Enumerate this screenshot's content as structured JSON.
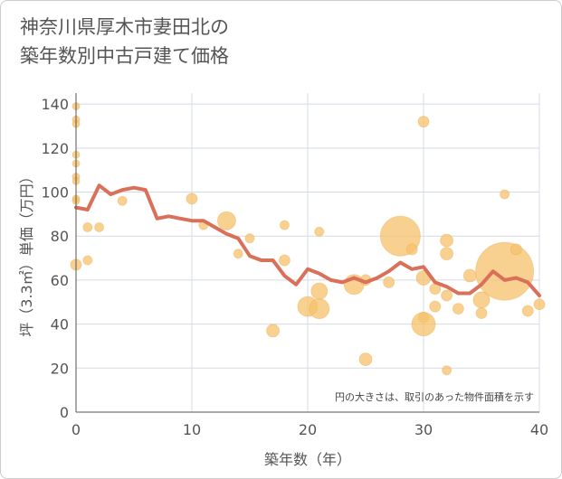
{
  "title_line1": "神奈川県厚木市妻田北の",
  "title_line2": "築年数別中古戸建て価格",
  "chart_data": {
    "type": "scatter",
    "title": "神奈川県厚木市妻田北の築年数別中古戸建て価格",
    "xlabel": "築年数（年）",
    "ylabel": "坪（3.3㎡）単価（万円）",
    "xlim": [
      0,
      40
    ],
    "ylim": [
      0,
      145
    ],
    "xticks": [
      "0",
      "10",
      "20",
      "30",
      "40"
    ],
    "yticks": [
      "0",
      "20",
      "40",
      "60",
      "80",
      "100",
      "120",
      "140"
    ],
    "annotation": "円の大きさは、取引のあった物件面積を示す",
    "colors": {
      "bubble": "#f5c16c",
      "line": "#d9705a",
      "grid": "#d5dbe3",
      "axis": "#555555"
    },
    "series": [
      {
        "name": "average",
        "type": "line",
        "x": [
          0,
          1,
          2,
          3,
          4,
          5,
          6,
          7,
          8,
          9,
          10,
          11,
          12,
          13,
          14,
          15,
          16,
          17,
          18,
          19,
          20,
          21,
          22,
          23,
          24,
          25,
          26,
          27,
          28,
          29,
          30,
          31,
          32,
          33,
          34,
          35,
          36,
          37,
          38,
          39,
          40
        ],
        "y": [
          93,
          92,
          103,
          99,
          101,
          102,
          101,
          88,
          89,
          88,
          87,
          87,
          84,
          81,
          79,
          71,
          69,
          69,
          62,
          58,
          65,
          63,
          60,
          59,
          61,
          59,
          61,
          64,
          68,
          65,
          66,
          59,
          57,
          54,
          54,
          58,
          64,
          60,
          61,
          59,
          53
        ]
      },
      {
        "name": "transactions",
        "type": "scatter",
        "points": [
          {
            "x": 0,
            "y": 139,
            "size": 4
          },
          {
            "x": 0,
            "y": 133,
            "size": 4
          },
          {
            "x": 0,
            "y": 131,
            "size": 4
          },
          {
            "x": 0,
            "y": 117,
            "size": 4
          },
          {
            "x": 0,
            "y": 113,
            "size": 4
          },
          {
            "x": 0,
            "y": 107,
            "size": 4
          },
          {
            "x": 0,
            "y": 105,
            "size": 4
          },
          {
            "x": 0,
            "y": 97,
            "size": 4
          },
          {
            "x": 0,
            "y": 96,
            "size": 4
          },
          {
            "x": 0,
            "y": 67,
            "size": 6
          },
          {
            "x": 1,
            "y": 84,
            "size": 5
          },
          {
            "x": 1,
            "y": 69,
            "size": 5
          },
          {
            "x": 2,
            "y": 84,
            "size": 5
          },
          {
            "x": 4,
            "y": 96,
            "size": 5
          },
          {
            "x": 10,
            "y": 97,
            "size": 6
          },
          {
            "x": 11,
            "y": 85,
            "size": 5
          },
          {
            "x": 13,
            "y": 87,
            "size": 10
          },
          {
            "x": 14,
            "y": 72,
            "size": 5
          },
          {
            "x": 15,
            "y": 79,
            "size": 5
          },
          {
            "x": 17,
            "y": 37,
            "size": 7
          },
          {
            "x": 18,
            "y": 85,
            "size": 5
          },
          {
            "x": 18,
            "y": 69,
            "size": 6
          },
          {
            "x": 20,
            "y": 48,
            "size": 11
          },
          {
            "x": 21,
            "y": 55,
            "size": 9
          },
          {
            "x": 21,
            "y": 47,
            "size": 11
          },
          {
            "x": 21,
            "y": 82,
            "size": 5
          },
          {
            "x": 24,
            "y": 58,
            "size": 11
          },
          {
            "x": 25,
            "y": 60,
            "size": 6
          },
          {
            "x": 25,
            "y": 24,
            "size": 7
          },
          {
            "x": 27,
            "y": 59,
            "size": 6
          },
          {
            "x": 28,
            "y": 80,
            "size": 22
          },
          {
            "x": 29,
            "y": 74,
            "size": 6
          },
          {
            "x": 30,
            "y": 132,
            "size": 6
          },
          {
            "x": 30,
            "y": 61,
            "size": 8
          },
          {
            "x": 30,
            "y": 43,
            "size": 6
          },
          {
            "x": 30,
            "y": 40,
            "size": 13
          },
          {
            "x": 31,
            "y": 56,
            "size": 6
          },
          {
            "x": 31,
            "y": 48,
            "size": 6
          },
          {
            "x": 32,
            "y": 78,
            "size": 7
          },
          {
            "x": 32,
            "y": 72,
            "size": 7
          },
          {
            "x": 32,
            "y": 53,
            "size": 6
          },
          {
            "x": 32,
            "y": 19,
            "size": 5
          },
          {
            "x": 33,
            "y": 47,
            "size": 6
          },
          {
            "x": 34,
            "y": 62,
            "size": 7
          },
          {
            "x": 35,
            "y": 51,
            "size": 9
          },
          {
            "x": 35,
            "y": 45,
            "size": 6
          },
          {
            "x": 37,
            "y": 99,
            "size": 5
          },
          {
            "x": 37,
            "y": 64,
            "size": 32
          },
          {
            "x": 38,
            "y": 74,
            "size": 6
          },
          {
            "x": 39,
            "y": 46,
            "size": 6
          },
          {
            "x": 40,
            "y": 49,
            "size": 6
          }
        ]
      }
    ]
  }
}
